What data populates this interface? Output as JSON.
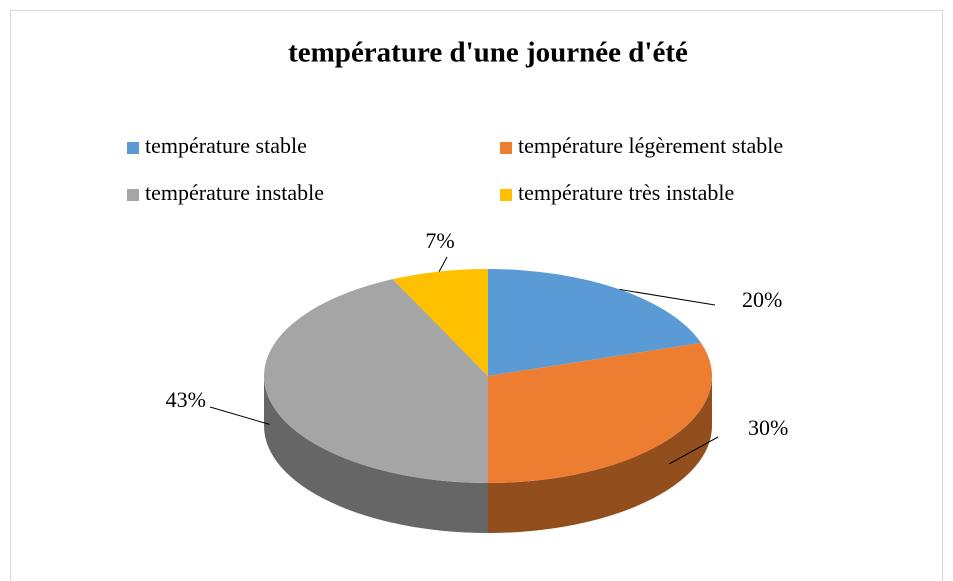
{
  "chart_data": {
    "type": "pie",
    "title": "température d'une journée d'été",
    "categories": [
      "température stable",
      "température légèrement stable",
      "température instable",
      "température très instable"
    ],
    "values": [
      20,
      30,
      43,
      7
    ],
    "value_labels": [
      "20%",
      "30%",
      "43%",
      "7%"
    ],
    "colors": [
      "#5b9bd5",
      "#ed7d31",
      "#a5a5a5",
      "#ffc000"
    ],
    "legend": "top"
  }
}
